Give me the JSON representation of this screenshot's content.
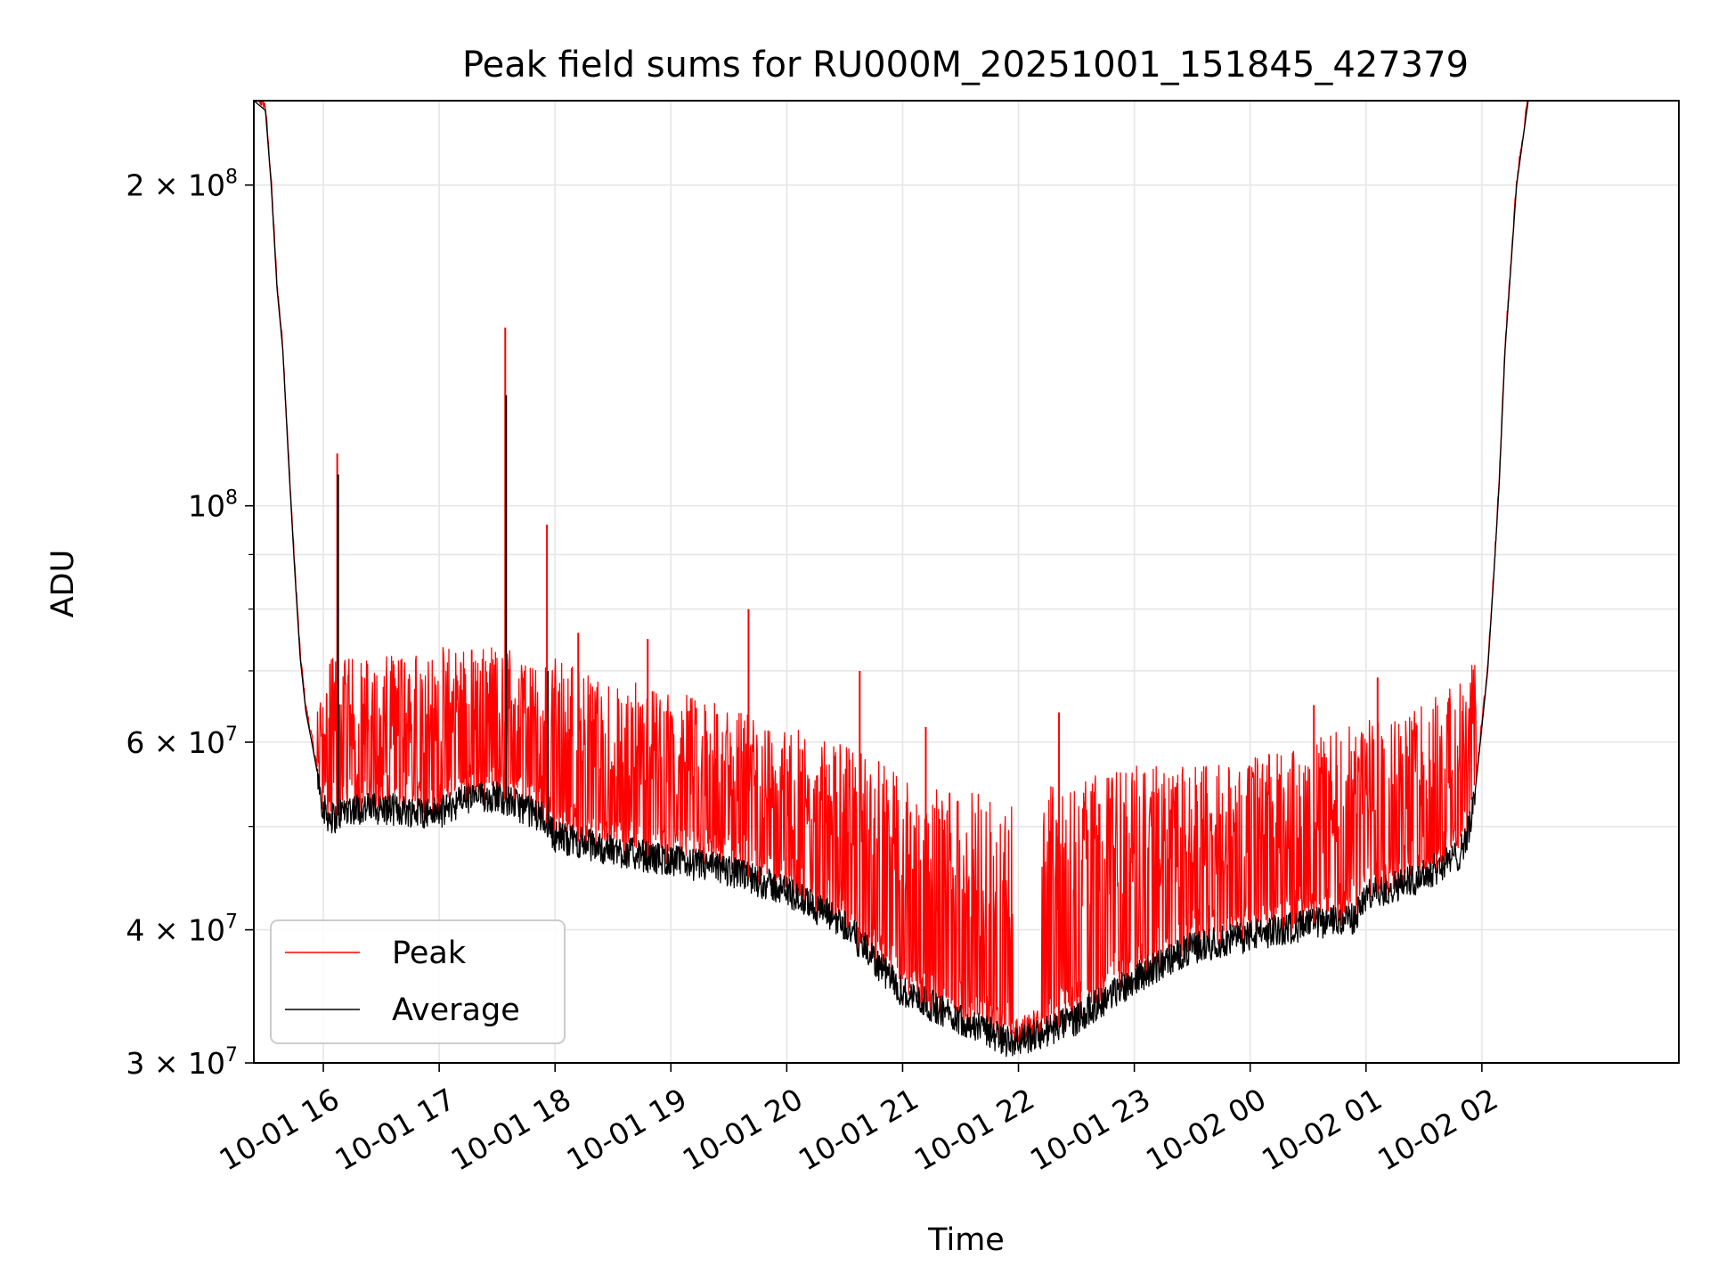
{
  "chart_data": {
    "type": "line",
    "title": "Peak field sums for RU000M_20251001_151845_427379",
    "xlabel": "Time",
    "ylabel": "ADU",
    "yscale": "log",
    "ylim": [
      30000000,
      240000000
    ],
    "xlim_hours": [
      -0.6,
      11.7
    ],
    "x_unit_note": "hours after 2025-10-01 16:00",
    "grid": true,
    "legend_position": "lower-left",
    "x_ticks": [
      {
        "label": "10-01 16",
        "hour": 0
      },
      {
        "label": "10-01 17",
        "hour": 1
      },
      {
        "label": "10-01 18",
        "hour": 2
      },
      {
        "label": "10-01 19",
        "hour": 3
      },
      {
        "label": "10-01 20",
        "hour": 4
      },
      {
        "label": "10-01 21",
        "hour": 5
      },
      {
        "label": "10-01 22",
        "hour": 6
      },
      {
        "label": "10-01 23",
        "hour": 7
      },
      {
        "label": "10-02 00",
        "hour": 8
      },
      {
        "label": "10-02 01",
        "hour": 9
      },
      {
        "label": "10-02 02",
        "hour": 10
      }
    ],
    "y_ticks": [
      {
        "value": 30000000,
        "mantissa": "3 × 10",
        "exp": "7"
      },
      {
        "value": 40000000,
        "mantissa": "4 × 10",
        "exp": "7"
      },
      {
        "value": 60000000,
        "mantissa": "6 × 10",
        "exp": "7"
      },
      {
        "value": 100000000,
        "mantissa": "10",
        "exp": "8"
      },
      {
        "value": 200000000,
        "mantissa": "2 × 10",
        "exp": "8"
      }
    ],
    "y_minor_ticks": [
      50000000,
      70000000,
      80000000,
      90000000
    ],
    "series": [
      {
        "name": "Peak",
        "color": "#ff0000",
        "envelope_x": [
          -0.6,
          -0.5,
          -0.45,
          -0.4,
          -0.35,
          -0.3,
          -0.25,
          -0.2,
          -0.15,
          -0.1,
          -0.05,
          0.0,
          0.05,
          0.1,
          0.15,
          0.2,
          0.5,
          1.0,
          1.5,
          2.0,
          2.5,
          3.0,
          3.5,
          4.0,
          4.5,
          5.0,
          5.5,
          5.9,
          6.0,
          6.2,
          6.3,
          6.5,
          7.0,
          7.5,
          8.0,
          8.5,
          9.0,
          9.5,
          9.8,
          9.9,
          9.95,
          10.0,
          10.05,
          10.1,
          10.15,
          10.2,
          10.3,
          10.4
        ],
        "envelope_peak": [
          240000000,
          235000000,
          200000000,
          160000000,
          140000000,
          110000000,
          88000000,
          76000000,
          70000000,
          68000000,
          66000000,
          68000000,
          72000000,
          72000000,
          72000000,
          72000000,
          72000000,
          74000000,
          74000000,
          72000000,
          69000000,
          67000000,
          65000000,
          62000000,
          60000000,
          56000000,
          54000000,
          53000000,
          52000000,
          54000000,
          55000000,
          56000000,
          57000000,
          57000000,
          58000000,
          60000000,
          63000000,
          66000000,
          68000000,
          70000000,
          75000000,
          80000000,
          90000000,
          100000000,
          130000000,
          170000000,
          220000000,
          240000000
        ],
        "spikes": [
          {
            "hour": 0.12,
            "value": 112000000
          },
          {
            "hour": 1.57,
            "value": 147000000
          },
          {
            "hour": 1.93,
            "value": 96000000
          },
          {
            "hour": 2.2,
            "value": 76000000
          },
          {
            "hour": 2.8,
            "value": 75000000
          },
          {
            "hour": 3.67,
            "value": 80000000
          },
          {
            "hour": 4.63,
            "value": 70000000
          },
          {
            "hour": 5.2,
            "value": 62000000
          },
          {
            "hour": 6.35,
            "value": 64000000
          },
          {
            "hour": 8.55,
            "value": 65000000
          },
          {
            "hour": 9.1,
            "value": 69000000
          }
        ]
      },
      {
        "name": "Average",
        "color": "#000000",
        "baseline_x": [
          -0.6,
          -0.5,
          -0.45,
          -0.4,
          -0.35,
          -0.3,
          -0.25,
          -0.2,
          -0.15,
          -0.1,
          -0.05,
          0.0,
          0.05,
          0.1,
          0.15,
          0.2,
          0.5,
          1.0,
          1.2,
          1.5,
          1.9,
          2.0,
          2.5,
          3.0,
          3.5,
          4.0,
          4.5,
          4.8,
          5.0,
          5.5,
          5.9,
          6.0,
          6.2,
          6.5,
          7.0,
          7.5,
          8.0,
          8.5,
          8.9,
          9.0,
          9.5,
          9.8,
          9.9,
          9.95,
          10.0,
          10.05,
          10.1,
          10.15,
          10.2,
          10.3,
          10.4
        ],
        "baseline_values": [
          240000000,
          235000000,
          200000000,
          160000000,
          140000000,
          110000000,
          88000000,
          72000000,
          64000000,
          60000000,
          56000000,
          52000000,
          51000000,
          51000000,
          51500000,
          52000000,
          52000000,
          51500000,
          53000000,
          53500000,
          51000000,
          49000000,
          47500000,
          46500000,
          45500000,
          43500000,
          40500000,
          37000000,
          35000000,
          33000000,
          31500000,
          31500000,
          32000000,
          33000000,
          36000000,
          38500000,
          39500000,
          40500000,
          41000000,
          43000000,
          45000000,
          47000000,
          50000000,
          55000000,
          62000000,
          70000000,
          85000000,
          105000000,
          140000000,
          200000000,
          240000000
        ],
        "spikes": [
          {
            "hour": 0.12,
            "value": 107000000
          },
          {
            "hour": 1.57,
            "value": 127000000
          },
          {
            "hour": 1.93,
            "value": 70000000
          }
        ]
      }
    ]
  },
  "legend": {
    "peak_label": "Peak",
    "average_label": "Average"
  }
}
